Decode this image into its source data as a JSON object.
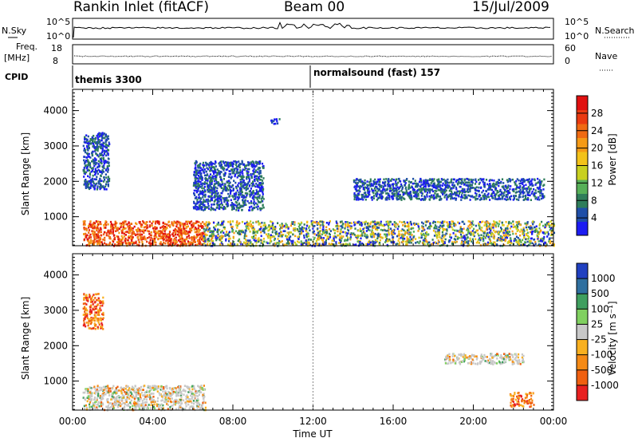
{
  "header": {
    "station": "Rankin Inlet (fitACF)",
    "beam": "Beam 00",
    "date": "15/Jul/2009"
  },
  "top_panels": {
    "nsky_label": "N.Sky",
    "nsearch_label": "N.Search",
    "nsky_ticks": [
      "10^5",
      "10^0"
    ],
    "nsearch_ticks": [
      "10^5",
      "10^0"
    ],
    "freq_label": "Freq.",
    "freq_unit": "[MHz]",
    "freq_ticks": [
      "18",
      "8"
    ],
    "nave_label": "Nave",
    "nave_ticks": [
      "60",
      "0"
    ],
    "cpid_label": "CPID",
    "cpid_segments": [
      "themis 3300",
      "normalsound (fast) 157"
    ]
  },
  "chart_data": [
    {
      "type": "heatmap",
      "name": "power",
      "xlabel": "Time UT",
      "ylabel": "Slant Range [km]",
      "x_ticks": [
        "00:00",
        "04:00",
        "08:00",
        "12:00",
        "16:00",
        "20:00",
        "00:00"
      ],
      "x_range_hours": [
        0,
        24
      ],
      "y_ticks": [
        1000,
        2000,
        3000,
        4000
      ],
      "y_range_km": [
        180,
        4600
      ],
      "colorbar": {
        "label": "Power [dB]",
        "ticks": [
          4,
          8,
          12,
          16,
          20,
          24,
          28
        ],
        "colors": [
          "#1c1cf2",
          "#1f4fa8",
          "#2f7d5a",
          "#57b058",
          "#c8d020",
          "#f3c21a",
          "#f59a16",
          "#f06a12",
          "#ea3a10",
          "#e01010"
        ]
      },
      "features": [
        {
          "t_start": 0.5,
          "t_end": 6.6,
          "r_start": 200,
          "r_end": 900,
          "level": "high",
          "desc": "strong near-range echoes"
        },
        {
          "t_start": 0.5,
          "t_end": 1.8,
          "r_start": 1800,
          "r_end": 3400,
          "level": "low"
        },
        {
          "t_start": 6.0,
          "t_end": 9.5,
          "r_start": 1200,
          "r_end": 2600,
          "level": "low"
        },
        {
          "t_start": 9.8,
          "t_end": 10.3,
          "r_start": 3650,
          "r_end": 3800,
          "level": "low"
        },
        {
          "t_start": 14.0,
          "t_end": 23.5,
          "r_start": 1500,
          "r_end": 2100,
          "level": "low"
        },
        {
          "t_start": 6.5,
          "t_end": 24.0,
          "r_start": 200,
          "r_end": 900,
          "level": "mixed"
        }
      ]
    },
    {
      "type": "heatmap",
      "name": "velocity",
      "xlabel": "Time UT",
      "ylabel": "Slant Range [km]",
      "x_ticks": [
        "00:00",
        "04:00",
        "08:00",
        "12:00",
        "16:00",
        "20:00",
        "00:00"
      ],
      "x_range_hours": [
        0,
        24
      ],
      "y_ticks": [
        1000,
        2000,
        3000,
        4000
      ],
      "y_range_km": [
        180,
        4600
      ],
      "colorbar": {
        "label": "Velocity [m s⁻¹]",
        "ticks": [
          1000,
          500,
          100,
          25,
          -25,
          -100,
          -500,
          -1000
        ],
        "colors": [
          "#2040c0",
          "#2f6f9f",
          "#3f9f5f",
          "#80d060",
          "#c8c8c8",
          "#f8b020",
          "#f58a15",
          "#f06010",
          "#e82020"
        ]
      },
      "features": [
        {
          "t_start": 0.5,
          "t_end": 6.6,
          "r_start": 200,
          "r_end": 900,
          "level": "mixed",
          "desc": "grey/green ground scatter"
        },
        {
          "t_start": 0.5,
          "t_end": 1.5,
          "r_start": 2500,
          "r_end": 3500,
          "level": "negative"
        },
        {
          "t_start": 18.5,
          "t_end": 22.5,
          "r_start": 1500,
          "r_end": 1800,
          "level": "mixed"
        },
        {
          "t_start": 21.8,
          "t_end": 23.0,
          "r_start": 300,
          "r_end": 700,
          "level": "negative"
        }
      ]
    }
  ]
}
